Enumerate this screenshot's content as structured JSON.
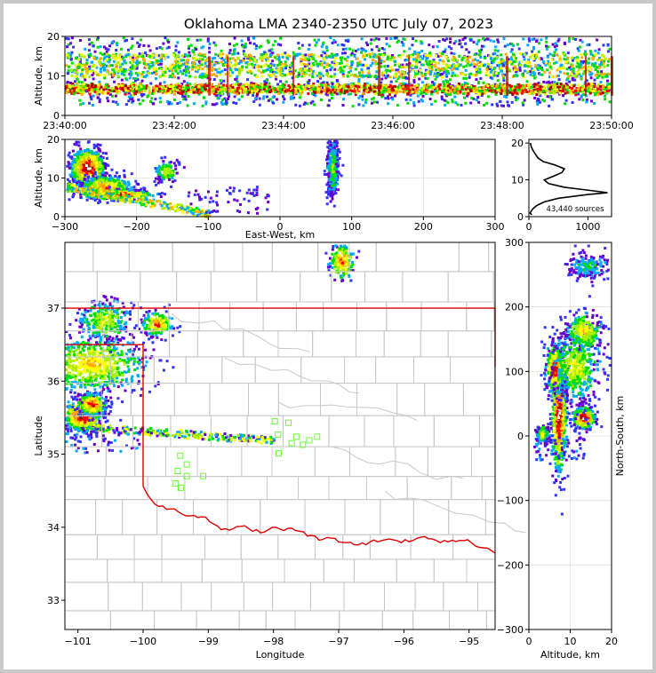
{
  "title": "Oklahoma LMA 2340-2350 UTC July 07, 2023",
  "colors": {
    "background": "#c8c8c8",
    "state_border": "#e00000",
    "county_lines": "#c8c8c8",
    "station_marker": "#66ff33",
    "altitude_profile": "#000000",
    "density_scale": [
      "#3333ff",
      "#6600cc",
      "#00aaff",
      "#00dd00",
      "#aaee00",
      "#ffff00",
      "#ffaa00",
      "#ff0000",
      "#aa0000",
      "#ffffff"
    ]
  },
  "chart_data": [
    {
      "type": "heatmap",
      "name": "altitude-time",
      "xlabel": "",
      "ylabel": "Altitude, km",
      "x_ticks": [
        "23:40:00",
        "23:42:00",
        "23:44:00",
        "23:46:00",
        "23:48:00",
        "23:50:00"
      ],
      "y_ticks": [
        0,
        10,
        20
      ],
      "ylim": [
        0,
        20
      ],
      "dense_altitude_km": [
        6,
        8
      ],
      "secondary_band_km": [
        10,
        15
      ]
    },
    {
      "type": "heatmap",
      "name": "east-west-altitude",
      "xlabel": "East-West, km",
      "ylabel": "Altitude, km",
      "xlim": [
        -300,
        300
      ],
      "ylim": [
        0,
        20
      ],
      "x_ticks": [
        -300,
        -200,
        -100,
        0,
        100,
        200,
        300
      ],
      "y_ticks": [
        0,
        10,
        20
      ],
      "grid": true
    },
    {
      "type": "line",
      "name": "altitude-histogram",
      "x_ticks": [
        0,
        1000
      ],
      "y_ticks": [
        0,
        10,
        20
      ],
      "annotation": "43,440 sources",
      "profile": [
        {
          "alt": 0.5,
          "count": 50
        },
        {
          "alt": 1,
          "count": 20
        },
        {
          "alt": 2,
          "count": 60
        },
        {
          "alt": 3,
          "count": 130
        },
        {
          "alt": 4,
          "count": 260
        },
        {
          "alt": 5,
          "count": 500
        },
        {
          "alt": 6,
          "count": 1000
        },
        {
          "alt": 6.5,
          "count": 1330
        },
        {
          "alt": 7,
          "count": 1100
        },
        {
          "alt": 8,
          "count": 600
        },
        {
          "alt": 9,
          "count": 330
        },
        {
          "alt": 10,
          "count": 260
        },
        {
          "alt": 11,
          "count": 420
        },
        {
          "alt": 12,
          "count": 560
        },
        {
          "alt": 13,
          "count": 600
        },
        {
          "alt": 14,
          "count": 450
        },
        {
          "alt": 15,
          "count": 240
        },
        {
          "alt": 16,
          "count": 150
        },
        {
          "alt": 17,
          "count": 110
        },
        {
          "alt": 18,
          "count": 70
        },
        {
          "alt": 19,
          "count": 40
        },
        {
          "alt": 20,
          "count": 25
        }
      ]
    },
    {
      "type": "heatmap",
      "name": "plan-view",
      "xlabel": "Longitude",
      "ylabel": "Latitude",
      "xlim": [
        -101.2,
        -94.6
      ],
      "ylim": [
        32.6,
        37.9
      ],
      "x_ticks": [
        "-101",
        "-100",
        "-99",
        "-98",
        "-97",
        "-96",
        "-95"
      ],
      "y_ticks": [
        "33",
        "34",
        "35",
        "36",
        "37"
      ],
      "stations": [
        {
          "lon": -97.98,
          "lat": 35.45
        },
        {
          "lon": -97.77,
          "lat": 35.43
        },
        {
          "lon": -97.93,
          "lat": 35.27
        },
        {
          "lon": -97.65,
          "lat": 35.24
        },
        {
          "lon": -97.33,
          "lat": 35.24
        },
        {
          "lon": -97.45,
          "lat": 35.19
        },
        {
          "lon": -97.72,
          "lat": 35.15
        },
        {
          "lon": -97.55,
          "lat": 35.13
        },
        {
          "lon": -97.92,
          "lat": 35.01
        },
        {
          "lon": -99.43,
          "lat": 34.98
        },
        {
          "lon": -99.33,
          "lat": 34.86
        },
        {
          "lon": -99.47,
          "lat": 34.77
        },
        {
          "lon": -99.33,
          "lat": 34.7
        },
        {
          "lon": -99.08,
          "lat": 34.7
        },
        {
          "lon": -99.5,
          "lat": 34.6
        },
        {
          "lon": -99.42,
          "lat": 34.54
        }
      ]
    },
    {
      "type": "heatmap",
      "name": "altitude-north-south",
      "xlabel": "Altitude, km",
      "ylabel": "North-South, km",
      "xlim": [
        0,
        20
      ],
      "ylim": [
        -300,
        300
      ],
      "x_ticks": [
        0,
        10,
        20
      ],
      "y_ticks": [
        -300,
        -200,
        -100,
        0,
        100,
        200,
        300
      ],
      "grid": true
    }
  ]
}
